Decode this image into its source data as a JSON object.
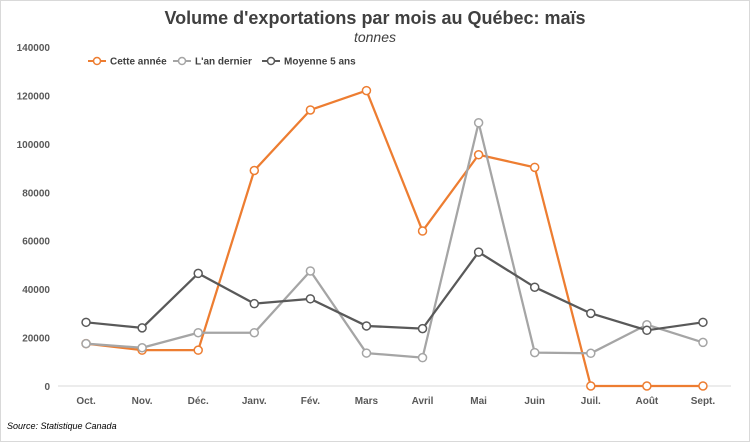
{
  "chart_data": {
    "type": "line",
    "title": "Volume d'exportations par mois au Québec: maïs",
    "subtitle": "tonnes",
    "source": "Source: Statistique Canada",
    "categories": [
      "Oct.",
      "Nov.",
      "Déc.",
      "Janv.",
      "Fév.",
      "Mars",
      "Avril",
      "Mai",
      "Juin",
      "Juil.",
      "Août",
      "Sept."
    ],
    "ylim": [
      0,
      140000
    ],
    "yticks": [
      "0",
      "20000",
      "40000",
      "60000",
      "80000",
      "100000",
      "120000",
      "140000"
    ],
    "grid": false,
    "legend_position": "top-left",
    "series": [
      {
        "name": "Cette année",
        "color": "#ed7d31",
        "values": [
          17500,
          14800,
          14800,
          89000,
          114000,
          122000,
          64000,
          95500,
          90300,
          0,
          0,
          0
        ]
      },
      {
        "name": "L'an dernier",
        "color": "#a5a5a5",
        "values": [
          17500,
          15800,
          22000,
          22000,
          47500,
          13600,
          11700,
          108700,
          13800,
          13500,
          25300,
          18000
        ]
      },
      {
        "name": "Moyenne 5 ans",
        "color": "#595959",
        "values": [
          26300,
          24000,
          46500,
          34000,
          36000,
          24800,
          23700,
          55300,
          40800,
          30000,
          23000,
          26300
        ]
      }
    ]
  }
}
